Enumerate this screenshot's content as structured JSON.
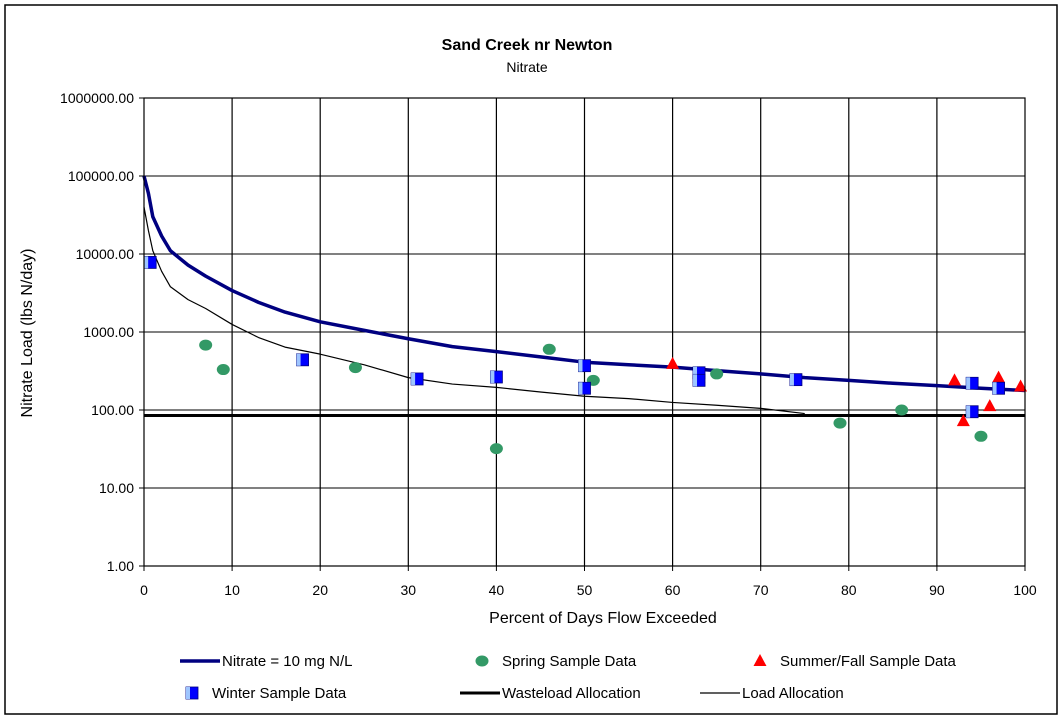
{
  "chart_data": {
    "type": "line",
    "title": "Sand Creek nr Newton",
    "subtitle": "Nitrate",
    "xlabel": "Percent of Days Flow Exceeded",
    "ylabel": "Nitrate Load (lbs N/day)",
    "xlim": [
      0,
      100
    ],
    "ylim": [
      1,
      1000000
    ],
    "yscale": "log",
    "grid": true,
    "legend_position": "bottom",
    "x_ticks": [
      "0",
      "10",
      "20",
      "30",
      "40",
      "50",
      "60",
      "70",
      "80",
      "90",
      "100"
    ],
    "x_tick_values": [
      0,
      10,
      20,
      30,
      40,
      50,
      60,
      70,
      80,
      90,
      100
    ],
    "y_ticks": [
      "1000000.00",
      "100000.00",
      "10000.00",
      "1000.00",
      "100.00",
      "10.00",
      "1.00"
    ],
    "y_tick_values": [
      1000000,
      100000,
      10000,
      1000,
      100,
      10,
      1
    ],
    "series": [
      {
        "name": "Nitrate = 10 mg N/L",
        "kind": "line",
        "color": "#000080",
        "x": [
          0,
          0.5,
          1,
          2,
          3,
          5,
          7,
          10,
          13,
          16,
          20,
          25,
          30,
          35,
          40,
          45,
          50,
          55,
          60,
          65,
          70,
          75,
          80,
          85,
          90,
          95,
          100
        ],
        "y": [
          100000,
          60000,
          30000,
          17000,
          11000,
          7200,
          5200,
          3400,
          2400,
          1800,
          1350,
          1050,
          820,
          650,
          560,
          480,
          410,
          380,
          355,
          320,
          290,
          260,
          240,
          220,
          205,
          190,
          178
        ]
      },
      {
        "name": "Spring Sample Data",
        "kind": "scatter",
        "marker": "circle",
        "color": "#339966",
        "x": [
          7,
          9,
          24,
          40,
          46,
          51,
          65,
          79,
          86,
          95
        ],
        "y": [
          680,
          330,
          350,
          32,
          600,
          240,
          290,
          68,
          100,
          46
        ]
      },
      {
        "name": "Summer/Fall Sample Data",
        "kind": "scatter",
        "marker": "triangle",
        "color": "#ff0000",
        "x": [
          60,
          63,
          92,
          93,
          96,
          97,
          99.5
        ],
        "y": [
          390,
          260,
          240,
          72,
          112,
          260,
          200
        ]
      },
      {
        "name": "Winter Sample Data",
        "kind": "scatter",
        "marker": "square",
        "color": "#0000ff",
        "x": [
          0.7,
          18,
          31,
          40,
          50,
          50,
          63,
          63,
          74,
          94,
          94,
          97
        ],
        "y": [
          7800,
          440,
          250,
          265,
          370,
          190,
          300,
          240,
          245,
          220,
          95,
          190
        ]
      },
      {
        "name": "Wasteload Allocation",
        "kind": "line",
        "color": "#000000",
        "x": [
          0,
          100
        ],
        "y": [
          85,
          85
        ]
      },
      {
        "name": "Load Allocation",
        "kind": "line",
        "color": "#000000",
        "x": [
          0,
          0.5,
          1,
          2,
          3,
          5,
          7,
          10,
          13,
          16,
          20,
          25,
          30,
          35,
          40,
          45,
          50,
          55,
          60,
          65,
          70,
          75
        ],
        "y": [
          40000,
          20000,
          11000,
          6000,
          3800,
          2600,
          2000,
          1250,
          850,
          640,
          520,
          380,
          260,
          215,
          195,
          170,
          150,
          140,
          125,
          115,
          105,
          90
        ]
      }
    ]
  }
}
